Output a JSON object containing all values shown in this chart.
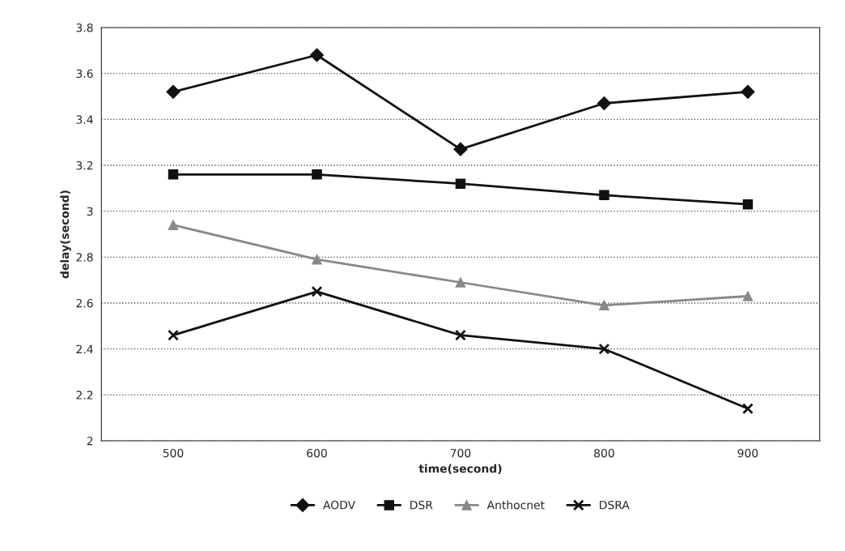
{
  "chart_data": {
    "type": "line",
    "xlabel": "time(second)",
    "ylabel": "delay(second)",
    "categories": [
      "500",
      "600",
      "700",
      "800",
      "900"
    ],
    "series": [
      {
        "name": "AODV",
        "color": "#111111",
        "marker": "diamond",
        "values": [
          3.52,
          3.68,
          3.27,
          3.47,
          3.52
        ]
      },
      {
        "name": "DSR",
        "color": "#111111",
        "marker": "square",
        "values": [
          3.16,
          3.16,
          3.12,
          3.07,
          3.03
        ]
      },
      {
        "name": "Anthocnet",
        "color": "#888888",
        "marker": "triangle",
        "values": [
          2.94,
          2.79,
          2.69,
          2.59,
          2.63
        ]
      },
      {
        "name": "DSRA",
        "color": "#111111",
        "marker": "cross",
        "values": [
          2.46,
          2.65,
          2.46,
          2.4,
          2.14
        ]
      }
    ],
    "ylim": [
      2,
      3.8
    ],
    "yticks": [
      2,
      2.2,
      2.4,
      2.6,
      2.8,
      3,
      3.2,
      3.4,
      3.6,
      3.8
    ],
    "grid": "y",
    "legend": "bottom"
  }
}
